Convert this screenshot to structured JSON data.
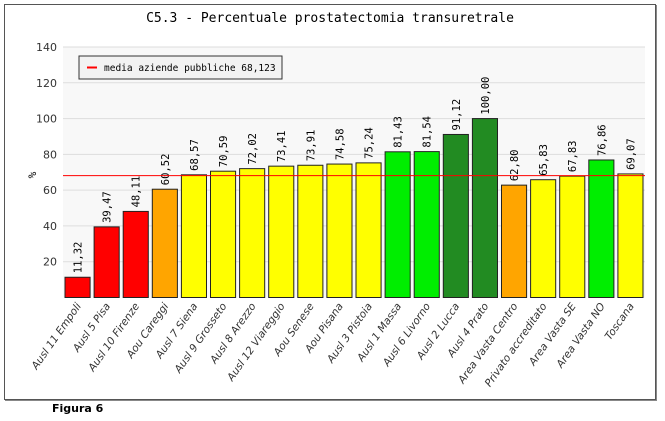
{
  "caption": "Figura 6",
  "chart_data": {
    "type": "bar",
    "title": "C5.3 - Percentuale prostatectomia transuretrale",
    "ylabel": "%",
    "ylim": [
      0,
      140
    ],
    "yticks": [
      20,
      40,
      60,
      80,
      100,
      120,
      140
    ],
    "grid": true,
    "categories": [
      "Ausl 11 Empoli",
      "Ausl 5 Pisa",
      "Ausl 10 Firenze",
      "Aou Careggi",
      "Ausl 7 Siena",
      "Ausl 9 Grosseto",
      "Ausl 8 Arezzo",
      "Ausl 12 Viareggio",
      "Aou Senese",
      "Aou Pisana",
      "Ausl 3 Pistoia",
      "Ausl 1 Massa",
      "Ausl 6 Livorno",
      "Ausl 2 Lucca",
      "Ausl 4 Prato",
      "Area Vasta Centro",
      "Privato accreditato",
      "Area Vasta SE",
      "Area Vasta NO",
      "Toscana"
    ],
    "values": [
      11.32,
      39.47,
      48.11,
      60.52,
      68.57,
      70.59,
      72.02,
      73.41,
      73.91,
      74.58,
      75.24,
      81.43,
      81.54,
      91.12,
      100.0,
      62.8,
      65.83,
      67.83,
      76.86,
      69.07
    ],
    "labels": [
      "11,32",
      "39,47",
      "48,11",
      "60,52",
      "68,57",
      "70,59",
      "72,02",
      "73,41",
      "73,91",
      "74,58",
      "75,24",
      "81,43",
      "81,54",
      "91,12",
      "100,00",
      "62,80",
      "65,83",
      "67,83",
      "76,86",
      "69,07"
    ],
    "colors": [
      "#ff0000",
      "#ff0000",
      "#ff0000",
      "#ffa500",
      "#ffff00",
      "#ffff00",
      "#ffff00",
      "#ffff00",
      "#ffff00",
      "#ffff00",
      "#ffff00",
      "#00ee00",
      "#00ee00",
      "#228b22",
      "#228b22",
      "#ffa500",
      "#ffff00",
      "#ffff00",
      "#00ee00",
      "#ffff00"
    ],
    "reference_line": {
      "value": 68.123,
      "color": "#ff0000",
      "legend": "media aziende pubbliche 68,123"
    },
    "legend_position": "top-left"
  }
}
